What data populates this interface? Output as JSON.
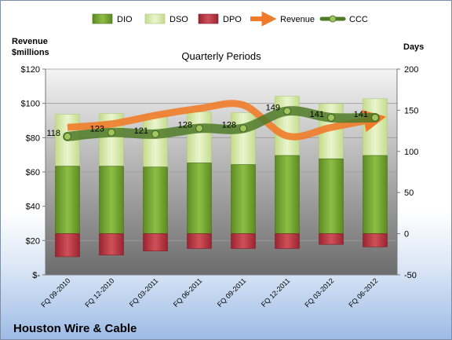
{
  "chart_data": {
    "type": "bar",
    "title": "Quarterly Periods",
    "company": "Houston Wire & Cable",
    "left_axis": {
      "label_line1": "Revenue",
      "label_line2": "$millions",
      "ticks": [
        "$-",
        "$20",
        "$40",
        "$60",
        "$80",
        "$100",
        "$120"
      ],
      "ylim": [
        0,
        120
      ]
    },
    "right_axis": {
      "label": "Days",
      "ticks": [
        "-50",
        "0",
        "50",
        "100",
        "150",
        "200"
      ],
      "ylim": [
        -50,
        200
      ]
    },
    "categories": [
      "FQ 09-2010",
      "FQ 12-2010",
      "FQ 03-2011",
      "FQ 06-2011",
      "FQ 09-2011",
      "FQ 12-2011",
      "FQ 03-2012",
      "FQ 06-2012"
    ],
    "legend": {
      "position": "top",
      "entries": [
        "DIO",
        "DSO",
        "DPO",
        "Revenue",
        "CCC"
      ]
    },
    "series": [
      {
        "name": "DIO",
        "axis": "days",
        "values": [
          82,
          82,
          81,
          86,
          84,
          95,
          91,
          95
        ],
        "color": "#6f9a2c"
      },
      {
        "name": "DSO",
        "axis": "days",
        "values": [
          63,
          64,
          63,
          62,
          63,
          72,
          67,
          69
        ],
        "color": "#d6e8a8"
      },
      {
        "name": "DPO",
        "axis": "days",
        "values": [
          -28,
          -26,
          -21,
          -18,
          -18,
          -18,
          -13,
          -16
        ],
        "color": "#b8303a"
      },
      {
        "name": "Revenue",
        "axis": "revenue",
        "values": [
          86,
          88,
          93,
          97,
          99,
          81,
          86,
          91
        ],
        "color": "#f07c2a"
      },
      {
        "name": "CCC",
        "axis": "days",
        "values": [
          118,
          123,
          121,
          128,
          128,
          149,
          141,
          141
        ],
        "color": "#4f7a28"
      }
    ],
    "ccc_labels": [
      "118",
      "123",
      "121",
      "128",
      "128",
      "149",
      "141",
      "141"
    ],
    "grid": true
  }
}
